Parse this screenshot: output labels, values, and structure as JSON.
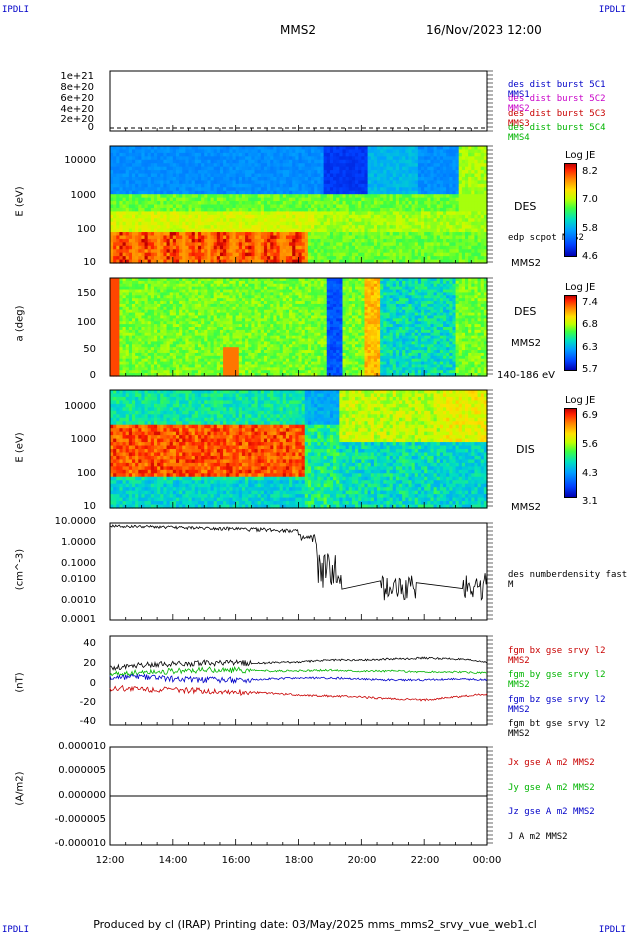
{
  "corners": {
    "tl": "IPDLI",
    "tr": "IPDLI",
    "bl": "IPDLI",
    "br": "IPDLI"
  },
  "header": {
    "mission": "MMS2",
    "datetime": "16/Nov/2023 12:00"
  },
  "footer": "Produced by cl (IRAP)   Printing date: 03/May/2025   mms_mms2_srvy_vue_web1.cl",
  "xaxis": {
    "ticks": [
      "12:00",
      "14:00",
      "16:00",
      "18:00",
      "20:00",
      "22:00",
      "00:00"
    ]
  },
  "panel1": {
    "yticks": [
      "1e+21",
      "8e+20",
      "6e+20",
      "4e+20",
      "2e+20",
      "0"
    ],
    "legend": [
      {
        "text": "des dist burst 5C1 MMS1",
        "color": "#0000c8"
      },
      {
        "text": "des dist burst 5C2 MMS2",
        "color": "#c800c8"
      },
      {
        "text": "des dist burst 5C3 MMS3",
        "color": "#c80000"
      },
      {
        "text": "des dist burst 5C4 MMS4",
        "color": "#00b400"
      }
    ]
  },
  "panel2": {
    "ylabel": "E (eV)",
    "yticks": [
      "10000",
      "1000",
      "100",
      "10"
    ],
    "label": "DES",
    "annot": "edp scpot MMS2",
    "cb": {
      "title": "Log JE",
      "ticks": [
        "8.2",
        "7.0",
        "5.8",
        "4.6"
      ]
    },
    "sat": "MMS2"
  },
  "panel3": {
    "ylabel": "a (deg)",
    "yticks": [
      "150",
      "100",
      "50",
      "0"
    ],
    "label": "DES",
    "sat": "MMS2",
    "energy": "140-186 eV",
    "cb": {
      "title": "Log JE",
      "ticks": [
        "7.4",
        "6.8",
        "6.3",
        "5.7"
      ]
    }
  },
  "panel4": {
    "ylabel": "E (eV)",
    "yticks": [
      "10000",
      "1000",
      "100",
      "10"
    ],
    "label": "DIS",
    "sat": "MMS2",
    "cb": {
      "title": "Log JE",
      "ticks": [
        "6.9",
        "5.6",
        "4.3",
        "3.1"
      ]
    }
  },
  "panel5": {
    "ylabel": "(cm^-3)",
    "yticks": [
      "10.0000",
      "1.0000",
      "0.1000",
      "0.0100",
      "0.0010",
      "0.0001"
    ],
    "annot": "des numberdensity fast M"
  },
  "panel6": {
    "ylabel": "(nT)",
    "yticks": [
      "40",
      "20",
      "0",
      "-20",
      "-40"
    ],
    "legend": [
      {
        "text": "fgm bx gse srvy l2 MMS2",
        "color": "#c80000"
      },
      {
        "text": "fgm by gse srvy l2 MMS2",
        "color": "#00b400"
      },
      {
        "text": "fgm bz gse srvy l2 MMS2",
        "color": "#0000c8"
      },
      {
        "text": "fgm bt gse srvy l2 MMS2",
        "color": "#000000"
      }
    ]
  },
  "panel7": {
    "ylabel": "(A/m2)",
    "yticks": [
      "0.000010",
      "0.000005",
      "0.000000",
      "-0.000005",
      "-0.000010"
    ],
    "legend": [
      {
        "text": "Jx gse A m2 MMS2",
        "color": "#c80000"
      },
      {
        "text": "Jy gse A m2 MMS2",
        "color": "#00b400"
      },
      {
        "text": "Jz gse A m2 MMS2",
        "color": "#0000c8"
      },
      {
        "text": "J A m2 MMS2",
        "color": "#000000"
      }
    ]
  },
  "chart_data": [
    {
      "type": "line",
      "title": "des dist burst",
      "x": [
        "12:00",
        "14:00",
        "16:00",
        "18:00",
        "20:00",
        "22:00",
        "00:00"
      ],
      "series": [
        {
          "name": "des dist burst 5C1 MMS1",
          "values": [
            0,
            0,
            0,
            0,
            0,
            0,
            0
          ]
        }
      ],
      "ylim": [
        0,
        1e+21
      ]
    },
    {
      "type": "heatmap",
      "label": "DES",
      "ylabel": "E (eV)",
      "yscale": "log",
      "ylim": [
        10,
        20000
      ],
      "colorbar": {
        "title": "Log JE",
        "range": [
          4.6,
          8.2
        ]
      }
    },
    {
      "type": "heatmap",
      "label": "DES",
      "ylabel": "a (deg)",
      "ylim": [
        0,
        180
      ],
      "energy": "140-186 eV",
      "colorbar": {
        "title": "Log JE",
        "range": [
          5.7,
          7.4
        ]
      }
    },
    {
      "type": "heatmap",
      "label": "DIS",
      "ylabel": "E (eV)",
      "yscale": "log",
      "ylim": [
        10,
        20000
      ],
      "colorbar": {
        "title": "Log JE",
        "range": [
          3.1,
          6.9
        ]
      }
    },
    {
      "type": "line",
      "ylabel": "(cm^-3)",
      "yscale": "log",
      "ylim": [
        0.0001,
        10
      ],
      "series": [
        {
          "name": "des numberdensity fast M",
          "x": [
            0,
            0.5,
            1,
            1.5,
            2,
            2.5,
            3,
            3.5,
            4,
            4.5,
            5,
            5.5,
            6,
            6.2,
            6.5,
            6.8,
            7,
            7.5,
            8,
            8.5,
            9,
            9.5,
            10,
            10.5,
            11,
            11.5,
            12
          ],
          "values": [
            9,
            6,
            5,
            3,
            1.5,
            4,
            5,
            3,
            3,
            4,
            4,
            3,
            2,
            0.5,
            1,
            0.02,
            0.1,
            0.01,
            null,
            null,
            0.01,
            0.005,
            null,
            null,
            0.01,
            0.005,
            0.02
          ]
        }
      ]
    },
    {
      "type": "line",
      "ylabel": "(nT)",
      "ylim": [
        -50,
        50
      ],
      "x": [
        0,
        1,
        2,
        3,
        4,
        5,
        6,
        7,
        8,
        9,
        10,
        11,
        12
      ],
      "series": [
        {
          "name": "fgm bx gse srvy l2 MMS2",
          "values": [
            -8,
            -9,
            -10,
            -11,
            -12,
            -13,
            -15,
            -16,
            -17,
            -19,
            -20,
            -17,
            -14
          ]
        },
        {
          "name": "fgm by gse srvy l2 MMS2",
          "values": [
            5,
            8,
            9,
            10,
            10,
            9,
            9,
            10,
            9,
            9,
            8,
            8,
            7
          ]
        },
        {
          "name": "fgm bz gse srvy l2 MMS2",
          "values": [
            2,
            3,
            1,
            0,
            0,
            1,
            2,
            2,
            1,
            0,
            0,
            1,
            0
          ]
        },
        {
          "name": "fgm bt gse srvy l2 MMS2",
          "values": [
            12,
            15,
            16,
            17,
            17,
            17,
            18,
            20,
            20,
            21,
            22,
            21,
            18
          ]
        }
      ]
    },
    {
      "type": "line",
      "ylabel": "(A/m2)",
      "ylim": [
        -1e-05,
        1e-05
      ],
      "x": [
        0,
        12
      ],
      "series": [
        {
          "name": "J A m2 MMS2",
          "values": [
            0,
            0
          ]
        }
      ]
    }
  ]
}
